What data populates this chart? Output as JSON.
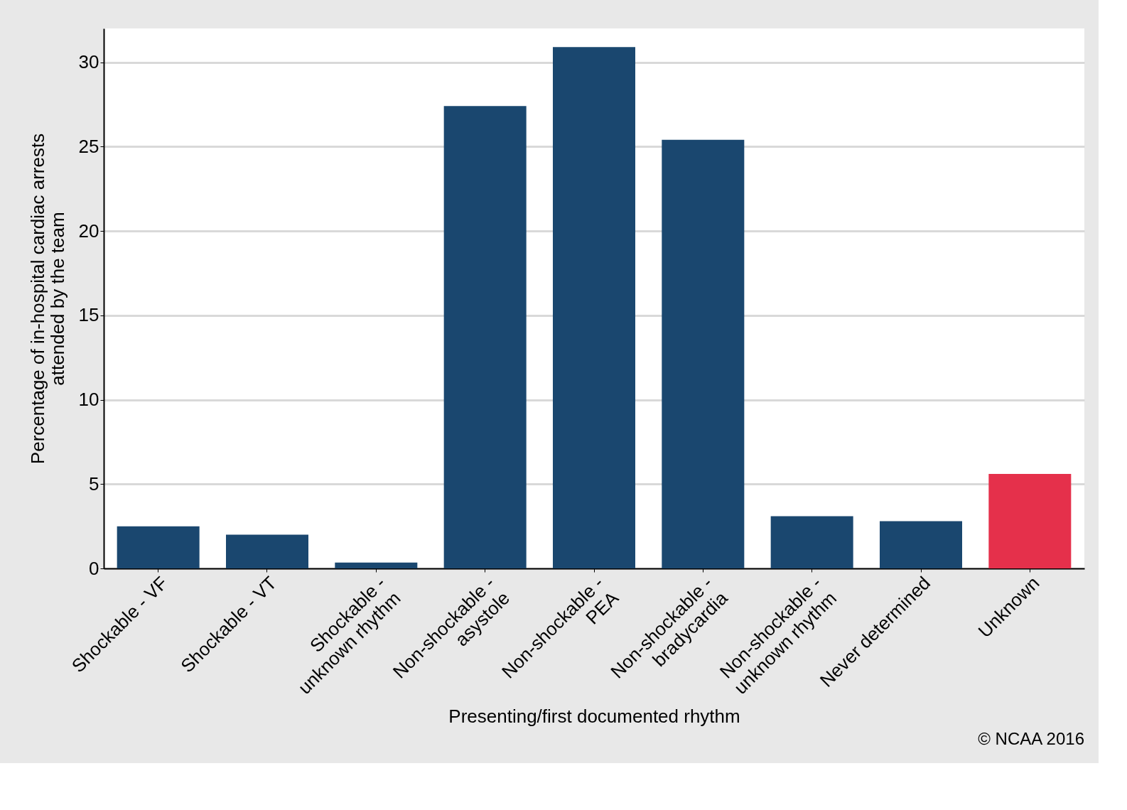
{
  "chart_data": {
    "type": "bar",
    "xlabel": "Presenting/first documented rhythm",
    "ylabel": "Percentage of in-hospital cardiac arrests\nattended by the team",
    "categories": [
      "Shockable - VF",
      "Shockable - VT",
      "Shockable -\nunknown rhythm",
      "Non-shockable -\nasystole",
      "Non-shockable -\nPEA",
      "Non-shockable -\nbradycardia",
      "Non-shockable -\nunknown rhythm",
      "Never determined",
      "Unknown"
    ],
    "values": [
      2.5,
      2.0,
      0.35,
      27.4,
      30.9,
      25.4,
      3.1,
      2.8,
      5.6
    ],
    "colors": [
      "#1a476f",
      "#1a476f",
      "#1a476f",
      "#1a476f",
      "#1a476f",
      "#1a476f",
      "#1a476f",
      "#1a476f",
      "#e5304b"
    ],
    "ylim": [
      0,
      32
    ],
    "yticks": [
      0,
      5,
      10,
      15,
      20,
      25,
      30
    ],
    "grid": "y",
    "annotations": [
      "© NCAA 2016"
    ]
  }
}
